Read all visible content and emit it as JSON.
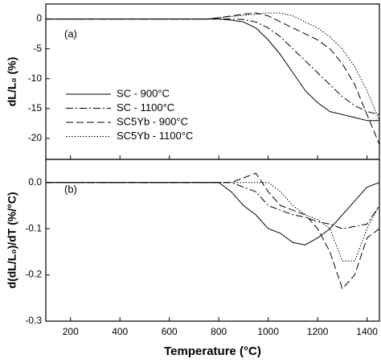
{
  "chart_data": [
    {
      "type": "line",
      "panel_label": "(a)",
      "ylabel": "dL/L₀ (%)",
      "x": [
        100,
        150,
        200,
        250,
        300,
        350,
        400,
        450,
        500,
        550,
        600,
        650,
        700,
        750,
        800,
        850,
        900,
        950,
        1000,
        1050,
        1100,
        1150,
        1200,
        1250,
        1300,
        1350,
        1400,
        1450
      ],
      "xlim": [
        100,
        1450
      ],
      "xticks": [
        200,
        400,
        600,
        800,
        1000,
        1200,
        1400
      ],
      "ylim": [
        -23.5,
        2.5
      ],
      "yticks": [
        0,
        -5,
        -10,
        -15,
        -20
      ],
      "legend": "lower left",
      "series": [
        {
          "name": "SC - 900°C",
          "color": "#000000",
          "dash": "solid",
          "values": [
            0,
            0,
            0,
            0,
            0,
            0,
            0,
            0,
            0,
            0,
            0,
            0,
            0,
            0,
            0,
            -0.2,
            -0.5,
            -1.5,
            -3.5,
            -6,
            -9,
            -12,
            -14,
            -15.5,
            -16,
            -16.5,
            -17,
            -17
          ]
        },
        {
          "name": "SC - 1100°C",
          "color": "#000000",
          "dash": "dashdot",
          "values": [
            0,
            0,
            0,
            0,
            0,
            0,
            0,
            0,
            0,
            0,
            0,
            0,
            0,
            0,
            0,
            0,
            -0.1,
            -0.5,
            -1.5,
            -3,
            -5,
            -7,
            -9,
            -11,
            -13,
            -14.5,
            -15.5,
            -16
          ]
        },
        {
          "name": "SC5Yb - 900°C",
          "color": "#000000",
          "dash": "dashed",
          "values": [
            0,
            0,
            0,
            0,
            0,
            0,
            0,
            0,
            0,
            0,
            0,
            0,
            0,
            0,
            0.2,
            0.5,
            0.8,
            1,
            0.5,
            -0.5,
            -1.5,
            -2.5,
            -3.5,
            -5,
            -7.5,
            -11,
            -16,
            -21
          ]
        },
        {
          "name": "SC5Yb - 1100°C",
          "color": "#000000",
          "dash": "dotted",
          "values": [
            0,
            0,
            0,
            0,
            0,
            0,
            0,
            0,
            0,
            0,
            0,
            0,
            0,
            0,
            0.2,
            0.4,
            0.6,
            0.8,
            1,
            1,
            0.5,
            -0.5,
            -1.5,
            -3,
            -5,
            -8,
            -12,
            -17
          ]
        }
      ]
    },
    {
      "type": "line",
      "panel_label": "(b)",
      "ylabel": "d(dL/L₀)/dT (%/°C)",
      "xlabel": "Temperature (°C)",
      "x": [
        100,
        150,
        200,
        250,
        300,
        350,
        400,
        450,
        500,
        550,
        600,
        650,
        700,
        750,
        800,
        850,
        900,
        950,
        1000,
        1050,
        1100,
        1150,
        1200,
        1250,
        1300,
        1350,
        1400,
        1450
      ],
      "xlim": [
        100,
        1450
      ],
      "xticks": [
        200,
        400,
        600,
        800,
        1000,
        1200,
        1400
      ],
      "ylim": [
        -0.3,
        0.05
      ],
      "yticks": [
        {
          "value": 0,
          "label": "0.0"
        },
        -0.1,
        -0.2,
        -0.3
      ],
      "series": [
        {
          "color": "#000000",
          "dash": "solid",
          "values": [
            0,
            0,
            0,
            0,
            0,
            0,
            0,
            0,
            0,
            0,
            0,
            0,
            0,
            0,
            0,
            -0.02,
            -0.05,
            -0.07,
            -0.1,
            -0.11,
            -0.13,
            -0.135,
            -0.12,
            -0.1,
            -0.07,
            -0.04,
            -0.01,
            0
          ]
        },
        {
          "color": "#000000",
          "dash": "dashdot",
          "values": [
            0,
            0,
            0,
            0,
            0,
            0,
            0,
            0,
            0,
            0,
            0,
            0,
            0,
            0,
            0,
            0,
            -0.01,
            -0.02,
            -0.05,
            -0.06,
            -0.07,
            -0.075,
            -0.085,
            -0.09,
            -0.1,
            -0.095,
            -0.09,
            -0.05
          ]
        },
        {
          "color": "#000000",
          "dash": "dashed",
          "values": [
            0,
            0,
            0,
            0,
            0,
            0,
            0,
            0,
            0,
            0,
            0,
            0,
            0,
            0,
            0,
            0,
            0.01,
            0.02,
            -0.02,
            -0.05,
            -0.06,
            -0.07,
            -0.1,
            -0.15,
            -0.23,
            -0.2,
            -0.12,
            -0.1
          ]
        },
        {
          "color": "#000000",
          "dash": "dotted",
          "values": [
            0,
            0,
            0,
            0,
            0,
            0,
            0,
            0,
            0,
            0,
            0,
            0,
            0,
            0,
            0,
            0,
            0,
            0,
            0,
            -0.02,
            -0.05,
            -0.07,
            -0.08,
            -0.1,
            -0.17,
            -0.17,
            -0.1,
            -0.05
          ]
        }
      ]
    }
  ]
}
